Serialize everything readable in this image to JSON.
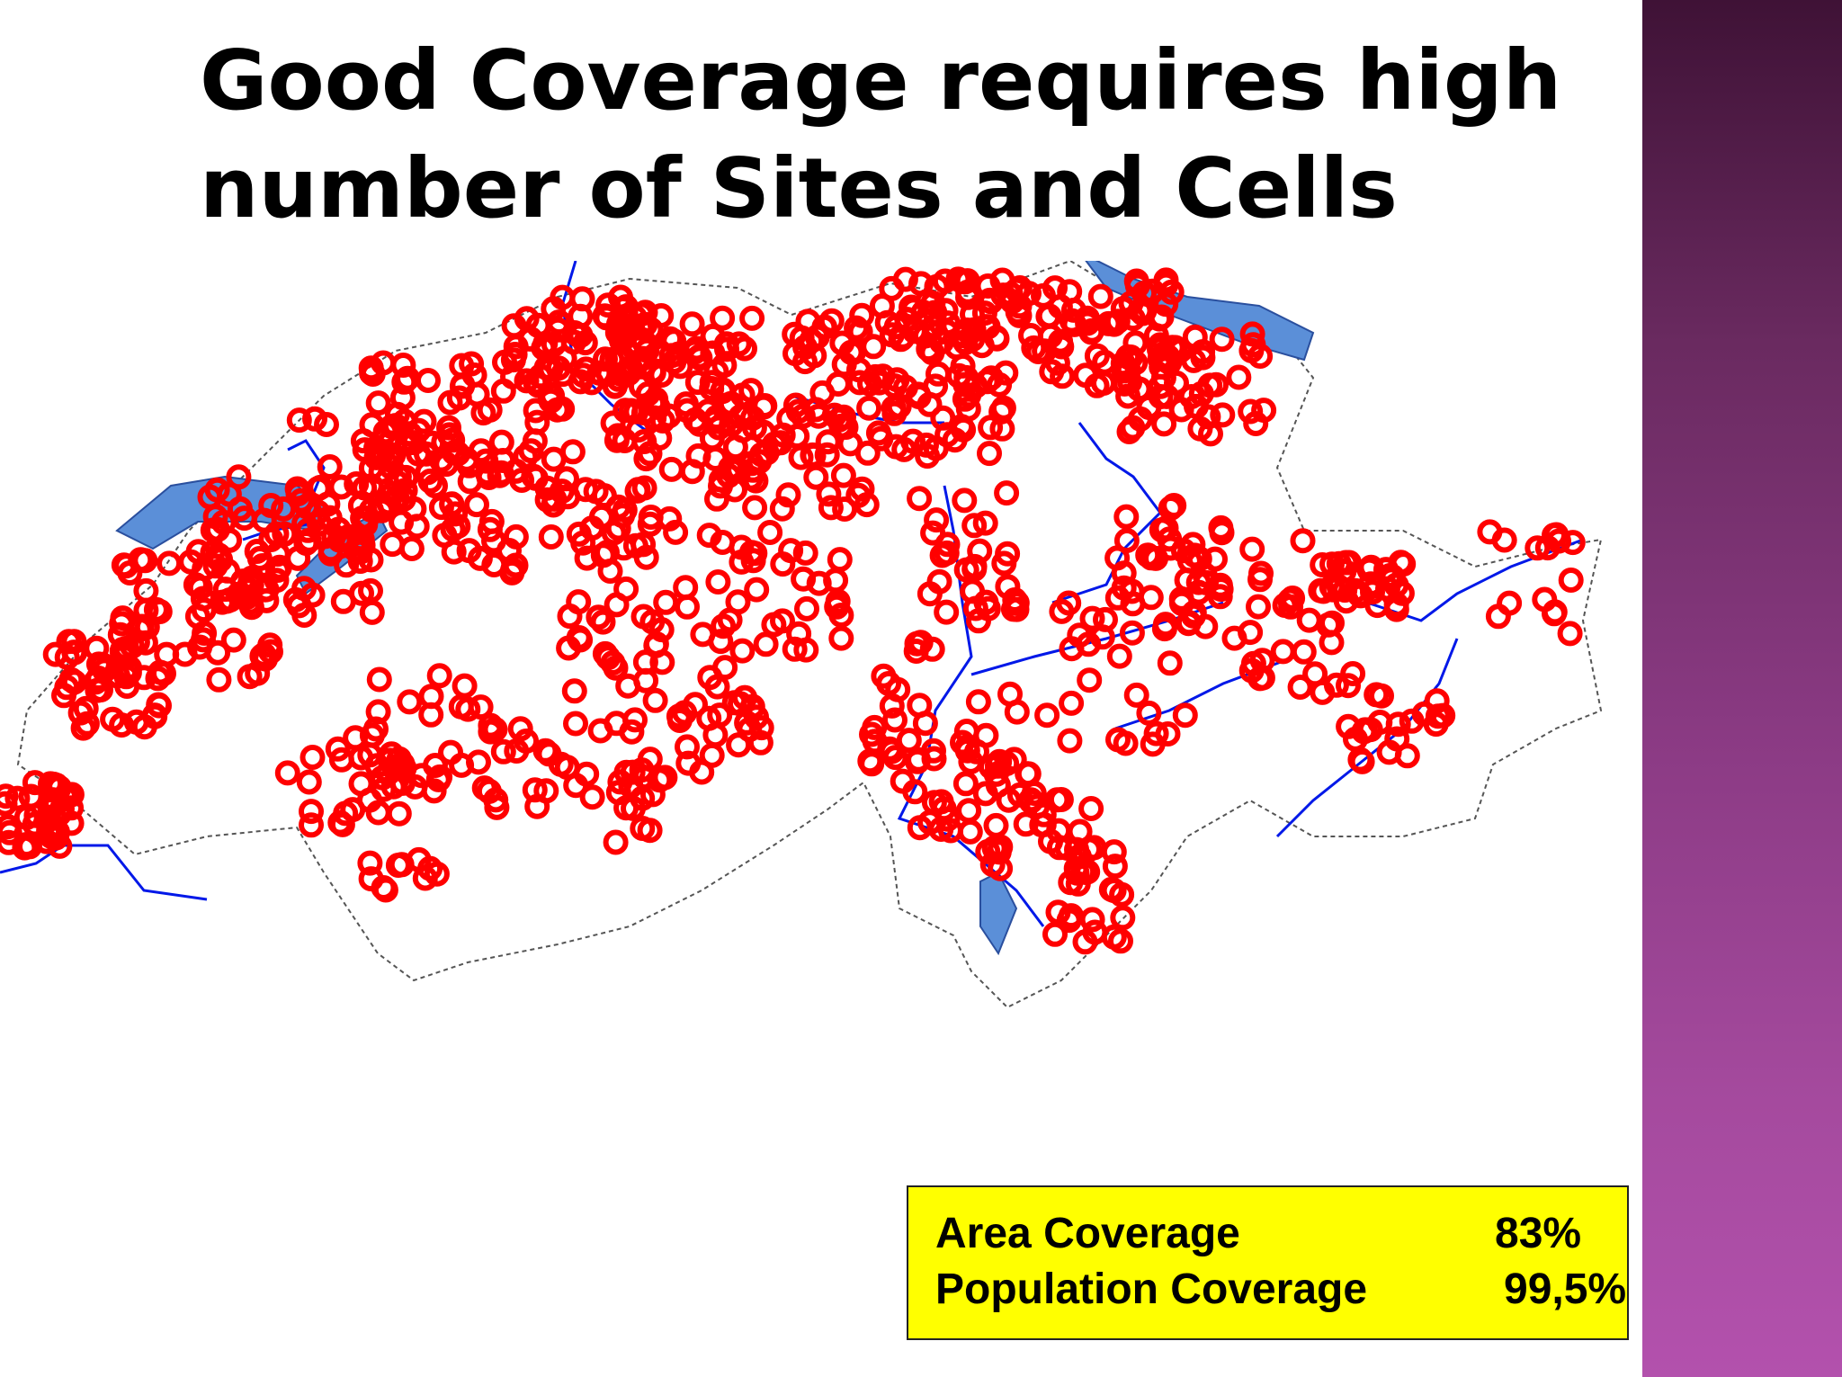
{
  "slide": {
    "title": "Good Coverage requires high number of Sites and Cells"
  },
  "legend": {
    "rows": [
      {
        "label": "Area Coverage",
        "value": "83%"
      },
      {
        "label": "Population Coverage",
        "value": "99,5%"
      }
    ]
  },
  "colors": {
    "site_marker": "#ff0000",
    "border": "#555555",
    "water": "#5b8fd8",
    "river": "#0018e8",
    "legend_bg": "#ffff00",
    "side_band": "#8c3b85"
  }
}
